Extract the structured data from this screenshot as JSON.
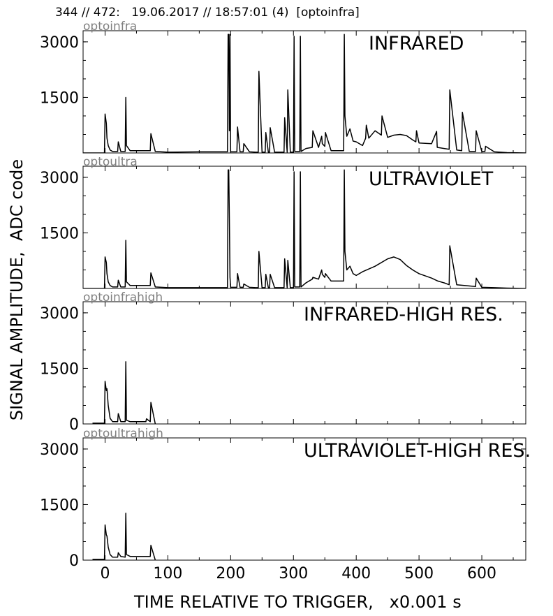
{
  "header_text": "344 // 472:   19.06.2017 // 18:57:01 (4)  [optoinfra]",
  "ylabel": "SIGNAL AMPLITUDE,  ADC code",
  "xlabel": "TIME RELATIVE TO TRIGGER,   x0.001 s",
  "colors": {
    "line": "#000000",
    "subtitle": "#808080",
    "frame": "#000000"
  },
  "chart_data": [
    {
      "type": "line",
      "channel": "optoinfra",
      "title": "INFRARED",
      "xlim": [
        -35,
        670
      ],
      "ylim": [
        0,
        3300
      ],
      "yticks": [
        1500,
        3000
      ],
      "xticks": [
        0,
        100,
        200,
        300,
        400,
        500,
        600
      ],
      "x": [
        -35,
        -3,
        -2,
        -1,
        0,
        2,
        3,
        5,
        8,
        12,
        20,
        21,
        25,
        32,
        33,
        34,
        40,
        60,
        72,
        73,
        80,
        100,
        150,
        195,
        196,
        197,
        198,
        199,
        200,
        205,
        210,
        211,
        215,
        220,
        221,
        230,
        240,
        244,
        245,
        250,
        255,
        256,
        260,
        262,
        263,
        270,
        280,
        285,
        286,
        290,
        291,
        295,
        300,
        301,
        302,
        310,
        311,
        312,
        320,
        330,
        331,
        340,
        345,
        346,
        350,
        351,
        360,
        380,
        381,
        382,
        385,
        390,
        395,
        400,
        410,
        415,
        416,
        420,
        430,
        440,
        441,
        450,
        460,
        470,
        480,
        490,
        495,
        496,
        500,
        520,
        528,
        529,
        540,
        548,
        549,
        560,
        568,
        569,
        580,
        590,
        591,
        600,
        605,
        606,
        620,
        640,
        670
      ],
      "y": [
        0,
        0,
        0,
        0,
        1050,
        800,
        400,
        200,
        80,
        40,
        40,
        300,
        40,
        40,
        1500,
        200,
        60,
        60,
        60,
        520,
        40,
        20,
        30,
        30,
        3200,
        3200,
        600,
        3200,
        30,
        30,
        30,
        700,
        30,
        30,
        250,
        30,
        20,
        20,
        2200,
        20,
        20,
        550,
        20,
        20,
        680,
        20,
        20,
        20,
        950,
        20,
        1700,
        20,
        20,
        3150,
        40,
        40,
        3150,
        40,
        120,
        150,
        600,
        150,
        450,
        250,
        180,
        550,
        60,
        60,
        3200,
        1000,
        450,
        650,
        320,
        300,
        200,
        400,
        750,
        400,
        600,
        480,
        1000,
        420,
        480,
        500,
        470,
        350,
        300,
        600,
        270,
        250,
        580,
        150,
        120,
        100,
        1700,
        80,
        60,
        1100,
        40,
        40,
        600,
        40,
        40,
        180,
        30,
        10,
        0
      ]
    },
    {
      "type": "line",
      "channel": "optoultra",
      "title": "ULTRAVIOLET",
      "xlim": [
        -35,
        670
      ],
      "ylim": [
        0,
        3300
      ],
      "yticks": [
        1500,
        3000
      ],
      "xticks": [
        0,
        100,
        200,
        300,
        400,
        500,
        600
      ],
      "x": [
        -35,
        -3,
        -2,
        -1,
        0,
        2,
        3,
        5,
        8,
        12,
        20,
        21,
        25,
        32,
        33,
        34,
        40,
        60,
        72,
        73,
        80,
        100,
        150,
        195,
        196,
        197,
        198,
        199,
        200,
        205,
        210,
        211,
        215,
        220,
        221,
        230,
        240,
        244,
        245,
        250,
        255,
        256,
        260,
        262,
        263,
        270,
        280,
        285,
        286,
        290,
        291,
        295,
        300,
        301,
        302,
        310,
        311,
        312,
        320,
        330,
        331,
        340,
        345,
        346,
        350,
        351,
        360,
        380,
        381,
        382,
        385,
        390,
        395,
        400,
        410,
        430,
        450,
        460,
        470,
        480,
        490,
        500,
        520,
        530,
        540,
        548,
        549,
        560,
        590,
        591,
        600,
        620,
        640,
        670
      ],
      "y": [
        0,
        0,
        0,
        0,
        850,
        700,
        400,
        180,
        80,
        40,
        40,
        220,
        40,
        40,
        1300,
        180,
        80,
        80,
        80,
        420,
        40,
        20,
        20,
        20,
        3200,
        3200,
        1900,
        300,
        30,
        30,
        30,
        400,
        30,
        30,
        120,
        30,
        20,
        20,
        1000,
        20,
        20,
        380,
        20,
        20,
        380,
        20,
        20,
        20,
        800,
        20,
        760,
        20,
        20,
        3150,
        40,
        40,
        3150,
        40,
        150,
        250,
        300,
        250,
        500,
        380,
        300,
        400,
        200,
        200,
        3200,
        1000,
        500,
        600,
        400,
        350,
        450,
        600,
        800,
        850,
        780,
        620,
        500,
        400,
        280,
        200,
        150,
        100,
        1150,
        100,
        50,
        280,
        30,
        20,
        10,
        0
      ]
    },
    {
      "type": "line",
      "channel": "optoinfrahigh",
      "title": "INFRARED-HIGH RES.",
      "xlim": [
        -35,
        670
      ],
      "ylim": [
        0,
        3300
      ],
      "yticks": [
        0,
        1500,
        3000
      ],
      "xticks": [
        0,
        100,
        200,
        300,
        400,
        500,
        600
      ],
      "x": [
        -20,
        -3,
        -2,
        -1,
        0,
        2,
        3,
        5,
        8,
        12,
        20,
        21,
        25,
        32,
        33,
        34,
        40,
        60,
        65,
        66,
        72,
        73,
        80
      ],
      "y": [
        20,
        20,
        20,
        20,
        1150,
        900,
        950,
        500,
        150,
        60,
        60,
        280,
        60,
        60,
        1680,
        100,
        60,
        60,
        60,
        140,
        60,
        580,
        0
      ]
    },
    {
      "type": "line",
      "channel": "optoultrahigh",
      "title": "ULTRAVIOLET-HIGH RES.",
      "xlim": [
        -35,
        670
      ],
      "ylim": [
        0,
        3300
      ],
      "yticks": [
        0,
        1500,
        3000
      ],
      "xticks": [
        0,
        100,
        200,
        300,
        400,
        500,
        600
      ],
      "x": [
        -20,
        -3,
        -2,
        -1,
        0,
        2,
        3,
        5,
        8,
        12,
        20,
        21,
        25,
        32,
        33,
        34,
        40,
        60,
        72,
        73,
        80
      ],
      "y": [
        20,
        20,
        20,
        20,
        950,
        680,
        650,
        350,
        150,
        80,
        80,
        200,
        100,
        80,
        1270,
        150,
        100,
        100,
        100,
        400,
        0
      ]
    }
  ]
}
